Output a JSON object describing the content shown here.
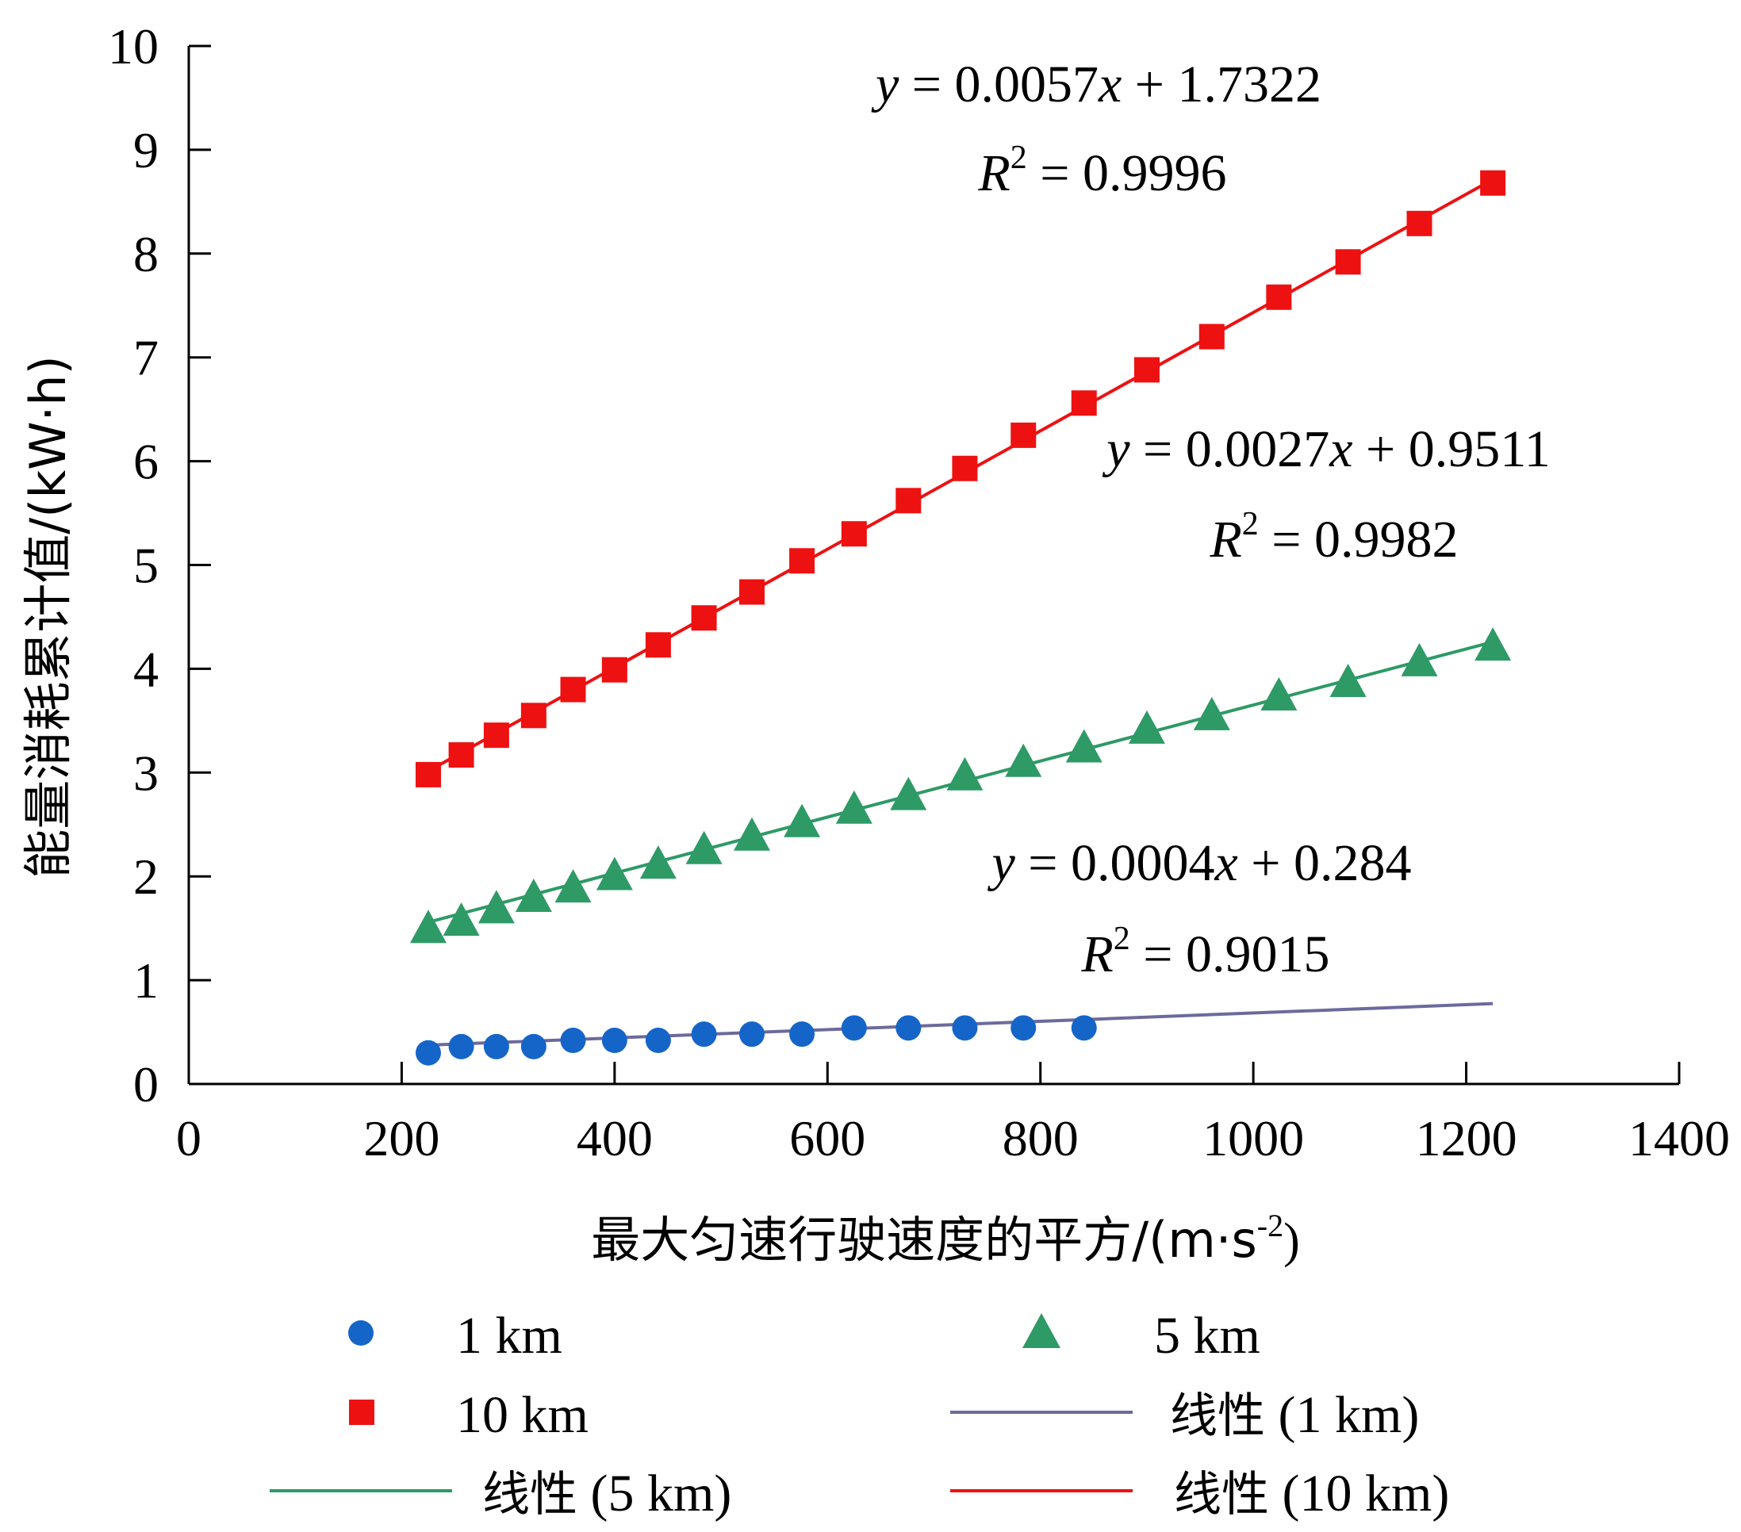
{
  "chart_data": {
    "type": "scatter",
    "title": "",
    "xlabel": "最大匀速行驶速度的平方/(m·s",
    "xlabel_sup": "-2",
    "xlabel_end": ")",
    "ylabel": "能量消耗累计值/(kW·h)",
    "xlim": [
      0,
      1400
    ],
    "ylim": [
      0,
      10
    ],
    "xticks": [
      0,
      200,
      400,
      600,
      800,
      1000,
      1200,
      1400
    ],
    "yticks": [
      0,
      1,
      2,
      3,
      4,
      5,
      6,
      7,
      8,
      9,
      10
    ],
    "x": [
      225,
      256,
      289,
      324,
      361,
      400,
      441,
      484,
      529,
      576,
      625,
      676,
      729,
      784,
      841,
      900,
      961,
      1024,
      1089,
      1156,
      1225
    ],
    "series": [
      {
        "name": "1 km",
        "marker": "circle",
        "color": "#1565c8",
        "x": [
          225,
          256,
          289,
          324,
          361,
          400,
          441,
          484,
          529,
          576,
          625,
          676,
          729,
          784,
          841
        ],
        "values": [
          0.3,
          0.36,
          0.36,
          0.36,
          0.42,
          0.42,
          0.42,
          0.48,
          0.48,
          0.48,
          0.54,
          0.54,
          0.54,
          0.54,
          0.54
        ]
      },
      {
        "name": "5 km",
        "marker": "triangle",
        "color": "#2e9a66",
        "values": [
          1.48,
          1.55,
          1.67,
          1.78,
          1.87,
          1.99,
          2.1,
          2.24,
          2.37,
          2.5,
          2.63,
          2.76,
          2.95,
          3.08,
          3.22,
          3.4,
          3.53,
          3.72,
          3.85,
          4.05,
          4.2
        ]
      },
      {
        "name": "10 km",
        "marker": "square",
        "color": "#ee1111",
        "values": [
          2.98,
          3.17,
          3.36,
          3.55,
          3.8,
          3.99,
          4.23,
          4.49,
          4.74,
          5.04,
          5.3,
          5.62,
          5.93,
          6.25,
          6.56,
          6.88,
          7.2,
          7.58,
          7.92,
          8.29,
          8.68
        ]
      }
    ],
    "trendlines": [
      {
        "name": "线性 (1 km)",
        "color": "#6c6a9c",
        "slope": 0.0004,
        "intercept": 0.284,
        "x_range": [
          225,
          1225
        ]
      },
      {
        "name": "线性 (5 km)",
        "color": "#2e9a66",
        "slope": 0.0027,
        "intercept": 0.9511,
        "x_range": [
          225,
          1225
        ]
      },
      {
        "name": "线性 (10 km)",
        "color": "#ee1111",
        "slope": 0.0057,
        "intercept": 1.7322,
        "x_range": [
          225,
          1225
        ]
      }
    ],
    "annotations": [
      {
        "equation_rest": " = 0.0057",
        "equation_end": " + 1.7322",
        "r2_rest": " = 0.9996",
        "r2_sup": "2"
      },
      {
        "equation_rest": " = 0.0027",
        "equation_end": " + 0.9511",
        "r2_rest": " = 0.9982",
        "r2_sup": "2"
      },
      {
        "equation_rest": " = 0.0004",
        "equation_end": " + 0.284",
        "r2_rest": " = 0.9015",
        "r2_sup": "2"
      }
    ],
    "annotation_symbols": {
      "y": "y",
      "x": "x",
      "R": "R"
    },
    "legend_position": "bottom",
    "legend": [
      {
        "label": "1 km",
        "kind": "circle",
        "color": "#1565c8"
      },
      {
        "label": "5 km",
        "kind": "triangle",
        "color": "#2e9a66"
      },
      {
        "label": "10 km",
        "kind": "square",
        "color": "#ee1111"
      },
      {
        "label_cjk": "线性",
        "label_rest": " (1 km)",
        "kind": "line",
        "color": "#6c6a9c"
      },
      {
        "label_cjk": "线性",
        "label_rest": " (5 km)",
        "kind": "line",
        "color": "#2e9a66"
      },
      {
        "label_cjk": "线性",
        "label_rest": " (10 km)",
        "kind": "line",
        "color": "#ee1111"
      }
    ]
  }
}
